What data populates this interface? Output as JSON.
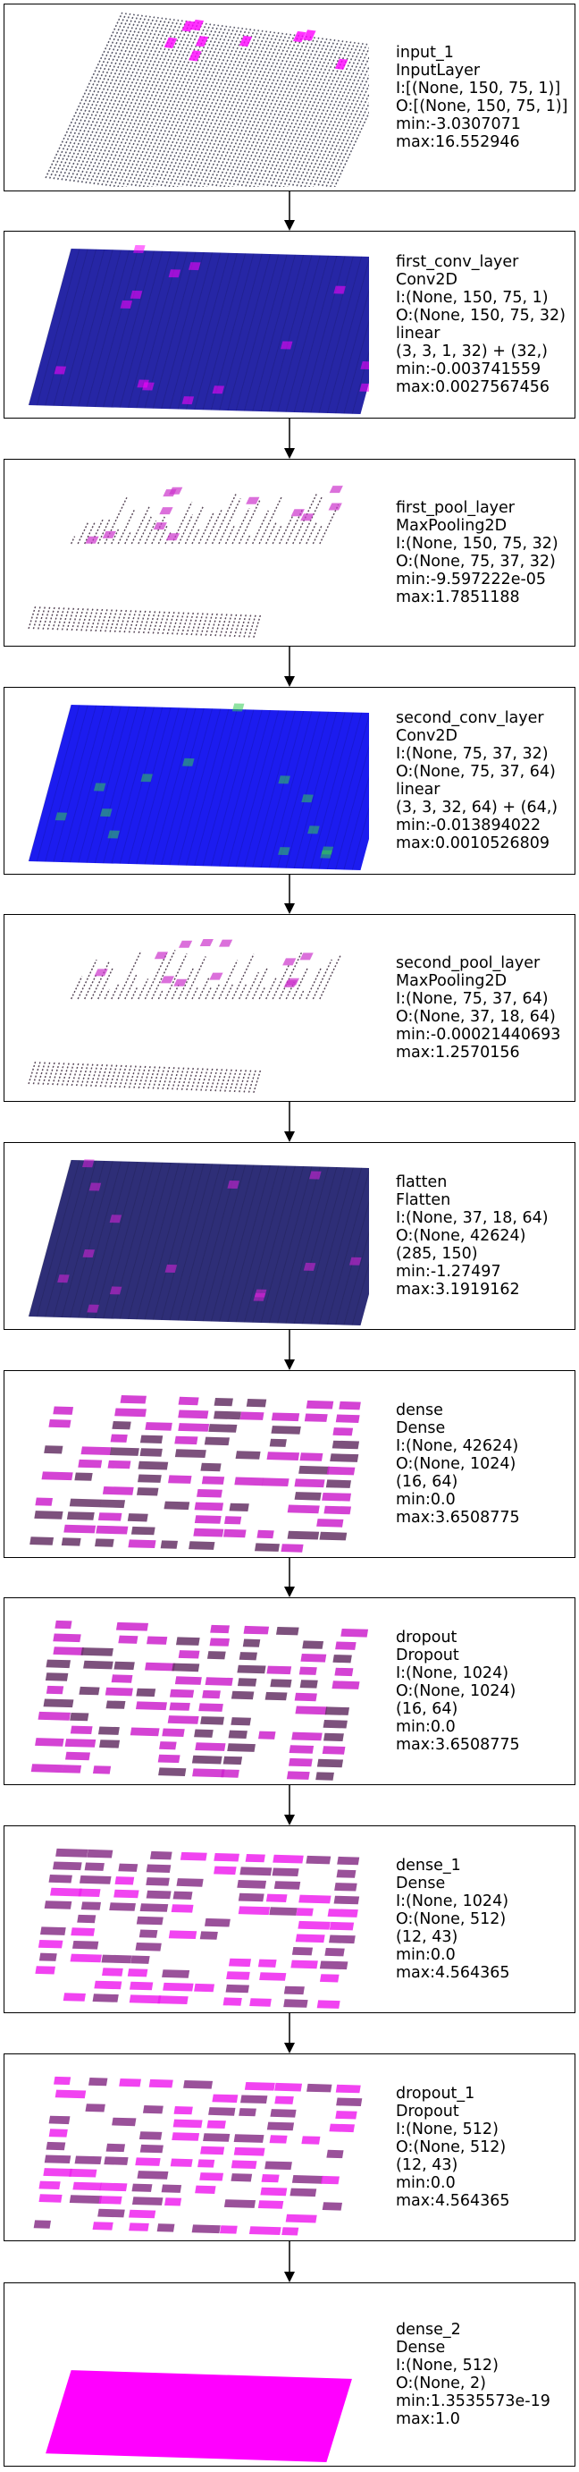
{
  "layers": [
    {
      "name": "input_1",
      "type": "InputLayer",
      "input": "I:[(None, 150, 75, 1)]",
      "output": "O:[(None, 150, 75, 1)]",
      "extra": [],
      "min": "min:-3.0307071",
      "max": "max:16.552946",
      "style": "sparse-dense-grid",
      "color": "#555566",
      "accent": "#ff00ff"
    },
    {
      "name": "first_conv_layer",
      "type": "Conv2D",
      "input": "I:(None, 150, 75, 1)",
      "output": "O:(None, 150, 75, 32)",
      "extra": [
        "linear",
        "(3, 3, 1, 32) + (32,)"
      ],
      "min": "min:-0.003741559",
      "max": "max:0.0027567456",
      "style": "solid",
      "color": "#1a1aa0",
      "accent": "#ff00ff"
    },
    {
      "name": "first_pool_layer",
      "type": "MaxPooling2D",
      "input": "I:(None, 150, 75, 32)",
      "output": "O:(None, 75, 37, 32)",
      "extra": [],
      "min": "min:-9.597222e-05",
      "max": "max:1.7851188",
      "style": "sparse",
      "color": "#554455",
      "accent": "#cc33cc"
    },
    {
      "name": "second_conv_layer",
      "type": "Conv2D",
      "input": "I:(None, 75, 37, 32)",
      "output": "O:(None, 75, 37, 64)",
      "extra": [
        "linear",
        "(3, 3, 32, 64) + (64,)"
      ],
      "min": "min:-0.013894022",
      "max": "max:0.0010526809",
      "style": "solid",
      "color": "#1010ee",
      "accent": "#33cc55"
    },
    {
      "name": "second_pool_layer",
      "type": "MaxPooling2D",
      "input": "I:(None, 75, 37, 64)",
      "output": "O:(None, 37, 18, 64)",
      "extra": [],
      "min": "min:-0.00021440693",
      "max": "max:1.2570156",
      "style": "sparse",
      "color": "#554455",
      "accent": "#cc33cc"
    },
    {
      "name": "flatten",
      "type": "Flatten",
      "input": "I:(None, 37, 18, 64)",
      "output": "O:(None, 42624)",
      "extra": [
        "(285, 150)"
      ],
      "min": "min:-1.27497",
      "max": "max:3.1919162",
      "style": "solid",
      "color": "#232370",
      "accent": "#dd22dd"
    },
    {
      "name": "dense",
      "type": "Dense",
      "input": "I:(None, 42624)",
      "output": "O:(None, 1024)",
      "extra": [
        "(16, 64)"
      ],
      "min": "min:0.0",
      "max": "max:3.6508775",
      "style": "blocks",
      "color": "#663366",
      "accent": "#cc22cc"
    },
    {
      "name": "dropout",
      "type": "Dropout",
      "input": "I:(None, 1024)",
      "output": "O:(None, 1024)",
      "extra": [
        "(16, 64)"
      ],
      "min": "min:0.0",
      "max": "max:3.6508775",
      "style": "blocks",
      "color": "#663366",
      "accent": "#cc22cc"
    },
    {
      "name": "dense_1",
      "type": "Dense",
      "input": "I:(None, 1024)",
      "output": "O:(None, 512)",
      "extra": [
        "(12, 43)"
      ],
      "min": "min:0.0",
      "max": "max:4.564365",
      "style": "blocks",
      "color": "#883388",
      "accent": "#ee22ee"
    },
    {
      "name": "dropout_1",
      "type": "Dropout",
      "input": "I:(None, 512)",
      "output": "O:(None, 512)",
      "extra": [
        "(12, 43)"
      ],
      "min": "min:0.0",
      "max": "max:4.564365",
      "style": "blocks",
      "color": "#883388",
      "accent": "#ee22ee"
    },
    {
      "name": "dense_2",
      "type": "Dense",
      "input": "I:(None, 512)",
      "output": "O:(None, 2)",
      "extra": [],
      "min": "min:1.3535573e-19",
      "max": "max:1.0",
      "style": "uniform",
      "color": "#ff00ff",
      "accent": "#ff00ff"
    }
  ]
}
